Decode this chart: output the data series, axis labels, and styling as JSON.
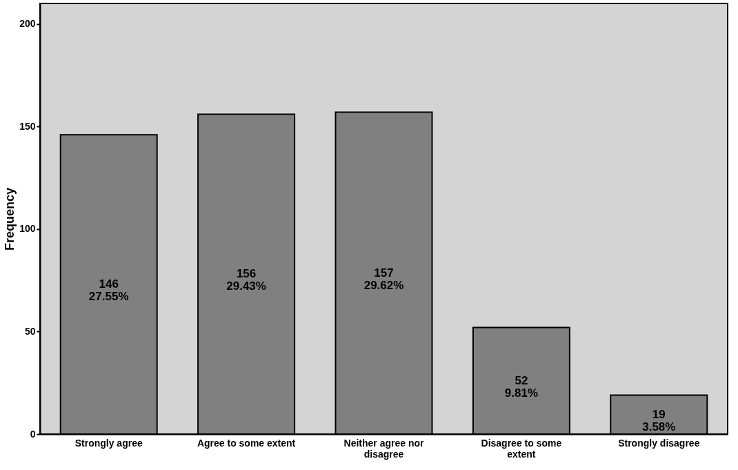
{
  "chart_data": {
    "type": "bar",
    "ylabel": "Frequency",
    "categories": [
      "Strongly agree",
      "Agree to some extent",
      "Neither agree nor disagree",
      "Disagree to some extent",
      "Strongly disagree"
    ],
    "values": [
      146,
      156,
      157,
      52,
      19
    ],
    "color": "#808080",
    "value_labels": [
      "146\n27.55%",
      "156\n29.43%",
      "157\n29.62%",
      "52\n9.81%",
      "19\n3.58%"
    ],
    "ylim": [
      0,
      210
    ],
    "yticks": [
      0,
      50,
      100,
      150,
      200
    ],
    "grid": false
  }
}
